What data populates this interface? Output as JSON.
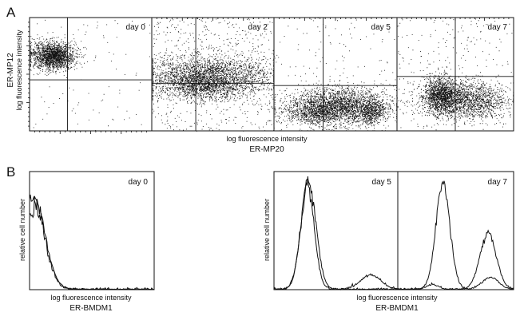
{
  "figure": {
    "panel_a_letter": "A",
    "panel_b_letter": "B",
    "panel_a_ylabel_line1": "ER-MP12",
    "panel_a_ylabel_line2": "log fluorescence intensity",
    "panel_a_xlabel_line1": "log fluorescence intensity",
    "panel_a_xlabel_line2": "ER-MP20",
    "panel_b_ylabel": "relative cell number",
    "panel_b_xlabel_line1": "log fluorescence intensity",
    "panel_b_xlabel_line2": "ER-BMDM1"
  },
  "chart_data": [
    {
      "type": "scatter",
      "panel": "A",
      "subplots": [
        {
          "label": "day 0",
          "gates": {
            "x": 0.31,
            "y": 0.55
          },
          "clusters": [
            {
              "cx": 0.18,
              "cy": 0.33,
              "sx": 0.1,
              "sy": 0.06,
              "n": 1500
            },
            {
              "cx": 0.22,
              "cy": 0.35,
              "sx": 0.06,
              "sy": 0.05,
              "n": 500
            }
          ],
          "scatter_points": 90
        },
        {
          "label": "day 2",
          "gates": {
            "x": 0.36,
            "y": 0.58
          },
          "clusters": [
            {
              "cx": 0.46,
              "cy": 0.52,
              "sx": 0.26,
              "sy": 0.09,
              "n": 2600
            },
            {
              "cx": 0.4,
              "cy": 0.6,
              "sx": 0.16,
              "sy": 0.06,
              "n": 700
            }
          ],
          "scatter_points": 650
        },
        {
          "label": "day 5",
          "gates": {
            "x": 0.4,
            "y": 0.6
          },
          "clusters": [
            {
              "cx": 0.52,
              "cy": 0.78,
              "sx": 0.2,
              "sy": 0.08,
              "n": 2600
            },
            {
              "cx": 0.3,
              "cy": 0.84,
              "sx": 0.1,
              "sy": 0.05,
              "n": 500
            },
            {
              "cx": 0.78,
              "cy": 0.83,
              "sx": 0.06,
              "sy": 0.06,
              "n": 500
            }
          ],
          "scatter_points": 160
        },
        {
          "label": "day 7",
          "gates": {
            "x": 0.5,
            "y": 0.52
          },
          "clusters": [
            {
              "cx": 0.38,
              "cy": 0.68,
              "sx": 0.07,
              "sy": 0.08,
              "n": 1200
            },
            {
              "cx": 0.52,
              "cy": 0.72,
              "sx": 0.18,
              "sy": 0.08,
              "n": 1300
            },
            {
              "cx": 0.72,
              "cy": 0.74,
              "sx": 0.13,
              "sy": 0.08,
              "n": 500
            }
          ],
          "scatter_points": 260
        }
      ]
    },
    {
      "type": "line",
      "panel": "B",
      "subplots": [
        {
          "label": "day 0",
          "series": [
            {
              "peaks": [
                {
                  "mu": 0.035,
                  "sigma": 0.09,
                  "amp": 0.75
                }
              ],
              "noise": 0.06
            },
            {
              "peaks": [
                {
                  "mu": 0.04,
                  "sigma": 0.085,
                  "amp": 0.7
                }
              ],
              "noise": 0.06
            }
          ]
        },
        {
          "label": "day 5",
          "series": [
            {
              "peaks": [
                {
                  "mu": 0.28,
                  "sigma": 0.06,
                  "amp": 0.92
                },
                {
                  "mu": 0.78,
                  "sigma": 0.08,
                  "amp": 0.12
                }
              ],
              "noise": 0.035
            },
            {
              "peaks": [
                {
                  "mu": 0.27,
                  "sigma": 0.055,
                  "amp": 0.88
                }
              ],
              "noise": 0.035
            }
          ]
        },
        {
          "label": "day 7",
          "series": [
            {
              "peaks": [
                {
                  "mu": 0.39,
                  "sigma": 0.06,
                  "amp": 0.9
                },
                {
                  "mu": 0.8,
                  "sigma": 0.07,
                  "amp": 0.1
                }
              ],
              "noise": 0.035
            },
            {
              "peaks": [
                {
                  "mu": 0.3,
                  "sigma": 0.05,
                  "amp": 0.04
                },
                {
                  "mu": 0.78,
                  "sigma": 0.07,
                  "amp": 0.47
                }
              ],
              "noise": 0.03
            }
          ]
        }
      ]
    }
  ]
}
